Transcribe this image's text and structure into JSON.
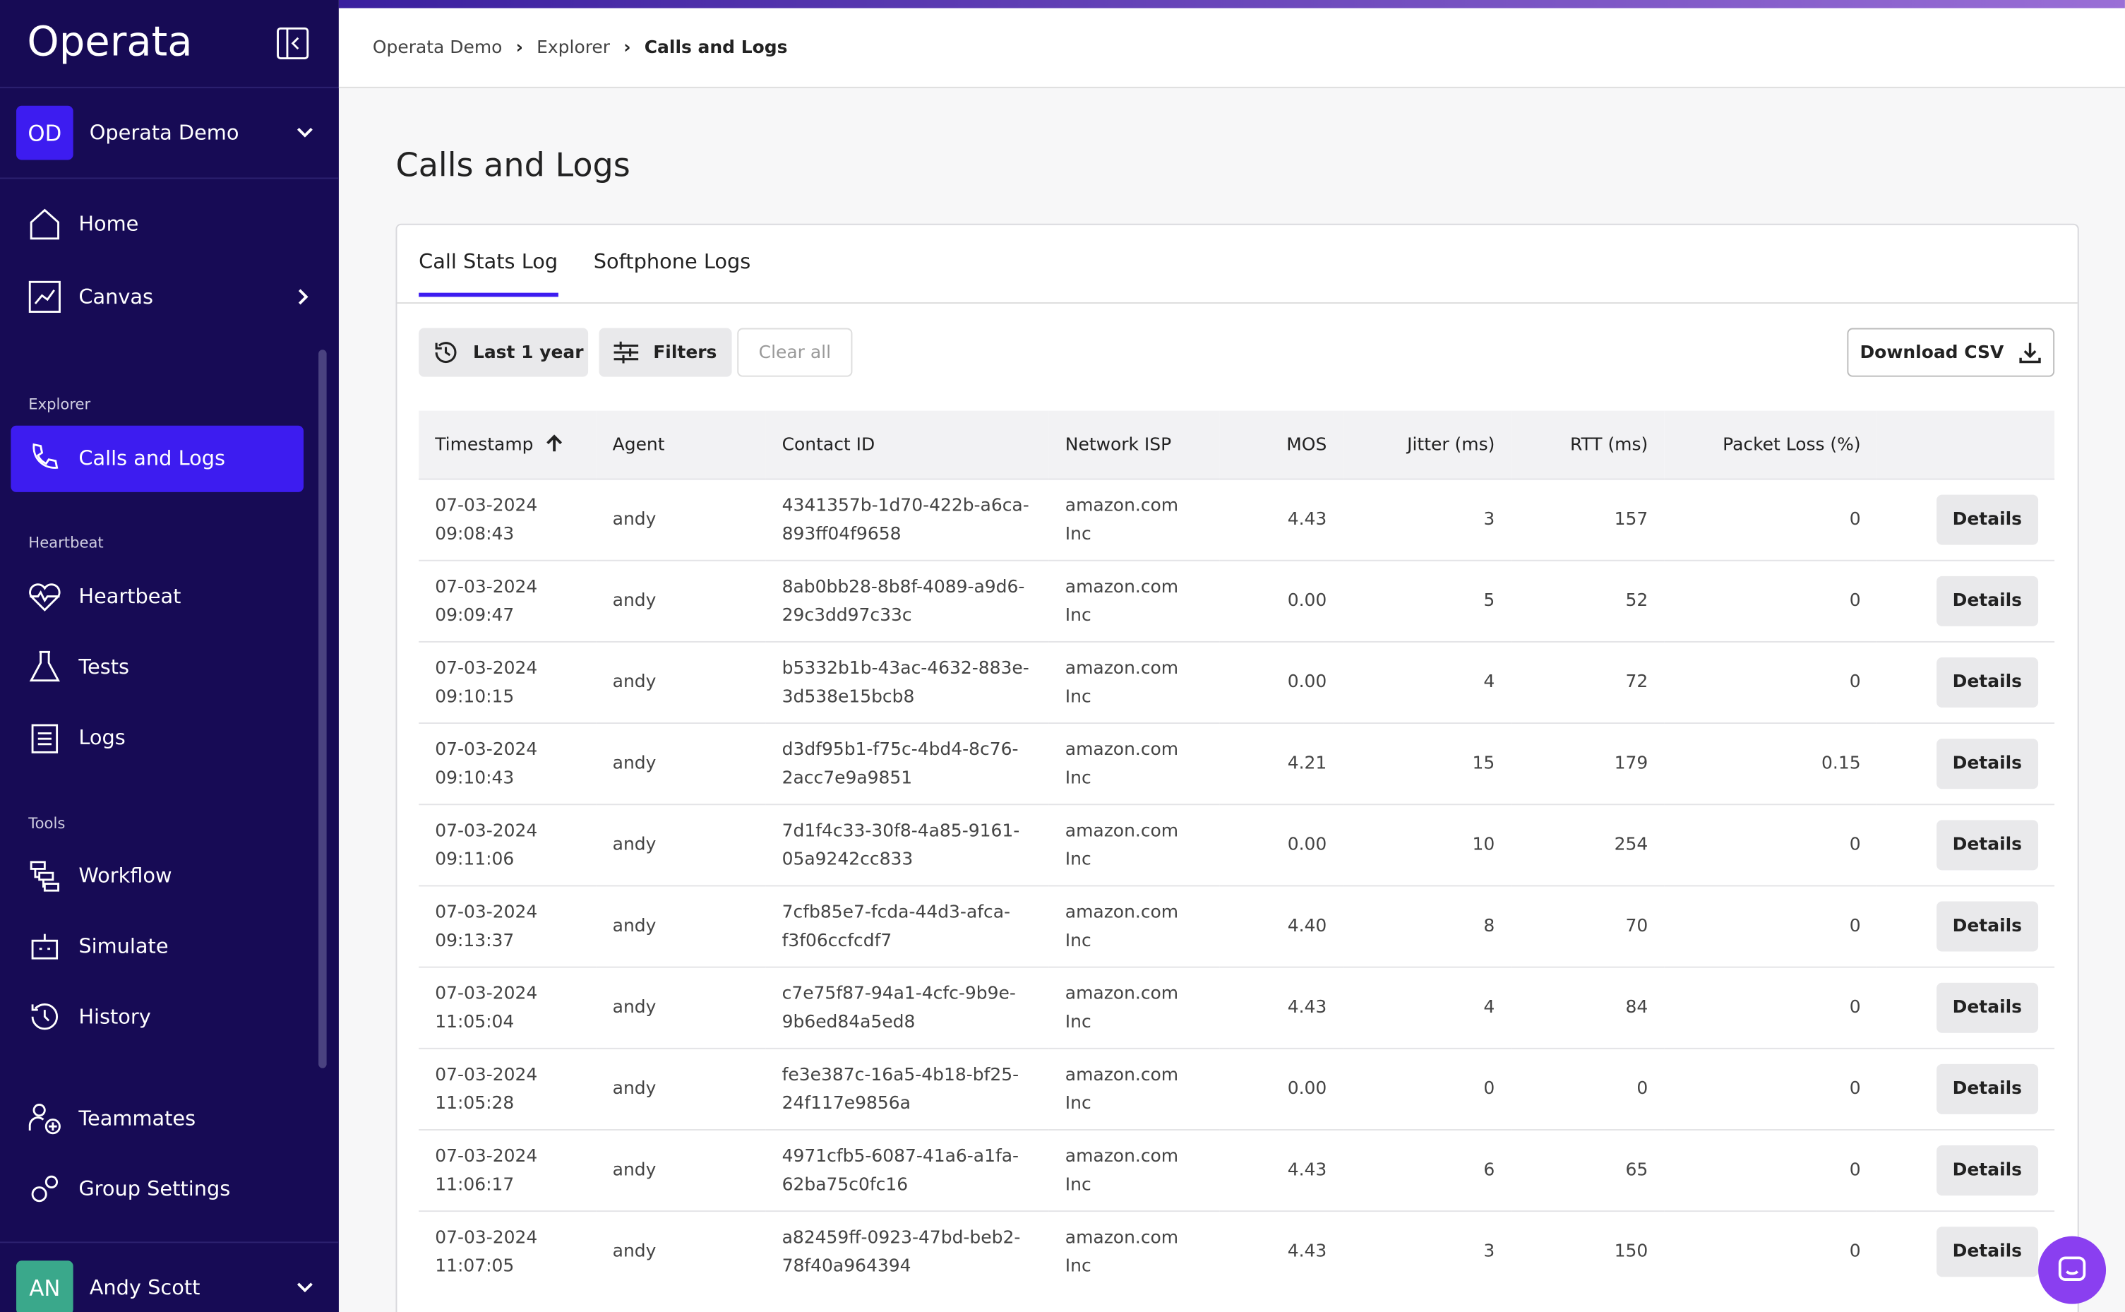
{
  "sidebar": {
    "logo": "Operata",
    "org": {
      "initials": "OD",
      "name": "Operata Demo"
    },
    "nav": {
      "home": "Home",
      "canvas": "Canvas",
      "explorer_label": "Explorer",
      "calls": "Calls and Logs",
      "heartbeat_label": "Heartbeat",
      "heartbeat": "Heartbeat",
      "tests": "Tests",
      "logs": "Logs",
      "tools_label": "Tools",
      "workflow": "Workflow",
      "simulate": "Simulate",
      "history": "History",
      "teammates": "Teammates",
      "group_settings": "Group Settings"
    },
    "user": {
      "initials": "AN",
      "name": "Andy Scott"
    }
  },
  "breadcrumb": [
    "Operata Demo",
    "Explorer",
    "Calls and Logs"
  ],
  "title": "Calls and Logs",
  "tabs": [
    "Call Stats Log",
    "Softphone Logs"
  ],
  "toolbar": {
    "range": "Last 1 year",
    "filters": "Filters",
    "clear": "Clear all",
    "download": "Download CSV"
  },
  "table": {
    "columns": [
      "Timestamp",
      "Agent",
      "Contact ID",
      "Network ISP",
      "MOS",
      "Jitter (ms)",
      "RTT (ms)",
      "Packet Loss (%)"
    ],
    "action": "Details",
    "rows": [
      [
        "07-03-2024 09:08:43",
        "andy",
        "4341357b-1d70-422b-a6ca-893ff04f9658",
        "amazon.com Inc",
        "4.43",
        "3",
        "157",
        "0"
      ],
      [
        "07-03-2024 09:09:47",
        "andy",
        "8ab0bb28-8b8f-4089-a9d6-29c3dd97c33c",
        "amazon.com Inc",
        "0.00",
        "5",
        "52",
        "0"
      ],
      [
        "07-03-2024 09:10:15",
        "andy",
        "b5332b1b-43ac-4632-883e-3d538e15bcb8",
        "amazon.com Inc",
        "0.00",
        "4",
        "72",
        "0"
      ],
      [
        "07-03-2024 09:10:43",
        "andy",
        "d3df95b1-f75c-4bd4-8c76-2acc7e9a9851",
        "amazon.com Inc",
        "4.21",
        "15",
        "179",
        "0.15"
      ],
      [
        "07-03-2024 09:11:06",
        "andy",
        "7d1f4c33-30f8-4a85-9161-05a9242cc833",
        "amazon.com Inc",
        "0.00",
        "10",
        "254",
        "0"
      ],
      [
        "07-03-2024 09:13:37",
        "andy",
        "7cfb85e7-fcda-44d3-afca-f3f06ccfcdf7",
        "amazon.com Inc",
        "4.40",
        "8",
        "70",
        "0"
      ],
      [
        "07-03-2024 11:05:04",
        "andy",
        "c7e75f87-94a1-4cfc-9b9e-9b6ed84a5ed8",
        "amazon.com Inc",
        "4.43",
        "4",
        "84",
        "0"
      ],
      [
        "07-03-2024 11:05:28",
        "andy",
        "fe3e387c-16a5-4b18-bf25-24f117e9856a",
        "amazon.com Inc",
        "0.00",
        "0",
        "0",
        "0"
      ],
      [
        "07-03-2024 11:06:17",
        "andy",
        "4971cfb5-6087-41a6-a1fa-62ba75c0fc16",
        "amazon.com Inc",
        "4.43",
        "6",
        "65",
        "0"
      ],
      [
        "07-03-2024 11:07:05",
        "andy",
        "a82459ff-0923-47bd-beb2-78f40a964394",
        "amazon.com Inc",
        "4.43",
        "3",
        "150",
        "0"
      ]
    ]
  }
}
